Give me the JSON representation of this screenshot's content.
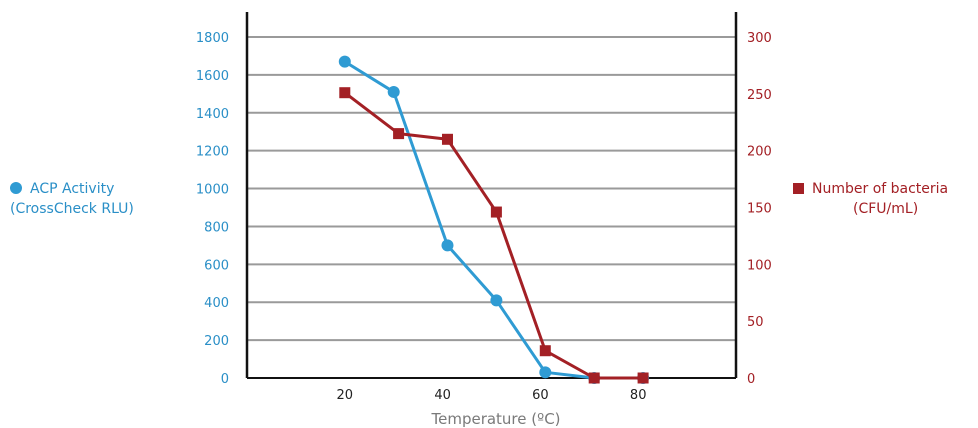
{
  "chart_data": {
    "type": "line",
    "xlabel": "Temperature (ºC)",
    "x_ticks": [
      20,
      40,
      60,
      80
    ],
    "xlim": [
      0,
      100
    ],
    "ylim_left": [
      0,
      1800
    ],
    "ylim_right": [
      0,
      300
    ],
    "y_ticks_left": [
      0,
      200,
      400,
      600,
      800,
      1000,
      1200,
      1400,
      1600,
      1800
    ],
    "y_ticks_right": [
      0,
      50,
      100,
      150,
      200,
      250,
      300
    ],
    "grid": true,
    "legend_left": {
      "line1": "ACP Activity",
      "line2": "(CrossCheck RLU)"
    },
    "legend_right": {
      "line1": "Number of bacteria",
      "line2": "(CFU/mL)"
    },
    "series": [
      {
        "axis": "left",
        "marker": "circle",
        "color": "#2f9bd3",
        "x": [
          20,
          30,
          41,
          51,
          61,
          71,
          81
        ],
        "y": [
          1670,
          1510,
          700,
          410,
          30,
          0,
          0
        ]
      },
      {
        "axis": "right",
        "marker": "square",
        "color": "#a32025",
        "x": [
          20,
          31,
          41,
          51,
          61,
          71,
          81
        ],
        "y": [
          251,
          215,
          210,
          146,
          24,
          0,
          0
        ]
      }
    ]
  }
}
